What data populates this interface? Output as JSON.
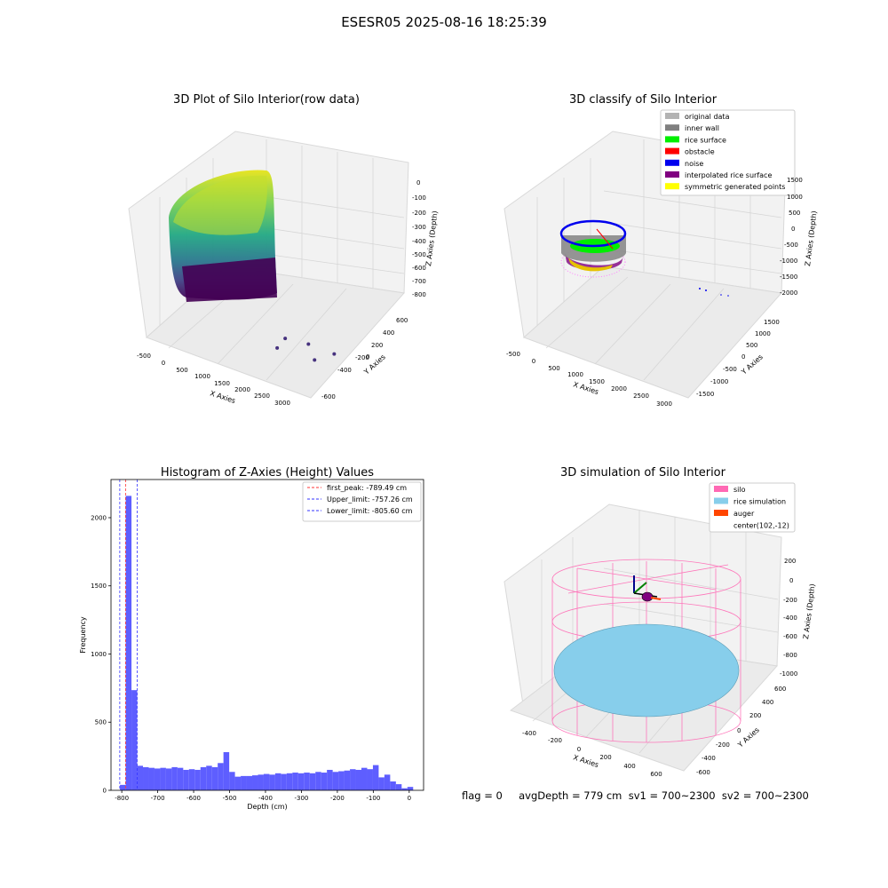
{
  "figure": {
    "suptitle": "ESESR05 2025-08-16 18:25:39",
    "status_line": "flag = 0     avgDepth = 779 cm  sv1 = 700~2300  sv2 = 700~2300"
  },
  "colors": {
    "hist_bar": "#5555ff",
    "pane": "#f2f2f2",
    "grid": "#d9d9d9",
    "first_peak_line": "#ff3333",
    "limit_line": "#3333ff",
    "original_data": "#b3b3b3",
    "inner_wall": "#808080",
    "rice_surface": "#00ee00",
    "obstacle": "#ff0000",
    "noise": "#0000ee",
    "interpolated_rice_surface": "#800080",
    "symmetric_generated_points": "#ffff00",
    "silo": "#ff69b4",
    "rice_simulation": "#87ceeb",
    "auger": "#ff4500"
  },
  "chart_data": [
    {
      "type": "scatter",
      "projection": "3d",
      "title": "3D Plot of Silo Interior(row data)",
      "xlabel": "X Axies",
      "ylabel": "Y Axies",
      "zlabel": "Z Axies (Depth)",
      "xticks": [
        "-500",
        "0",
        "500",
        "1000",
        "1500",
        "2000",
        "2500",
        "3000"
      ],
      "yticks": [
        "-600",
        "-400",
        "-200",
        "0",
        "200",
        "400",
        "600"
      ],
      "zticks": [
        "0",
        "-100",
        "-200",
        "-300",
        "-400",
        "-500",
        "-600",
        "-700",
        "-800"
      ],
      "xlim": [
        -600,
        3100
      ],
      "ylim": [
        -650,
        650
      ],
      "zlim": [
        -850,
        50
      ],
      "colormap": "viridis",
      "noise_points": [
        {
          "x": 2100,
          "y": -500,
          "z": -700
        },
        {
          "x": 2200,
          "y": -450,
          "z": -650
        },
        {
          "x": 2400,
          "y": -250,
          "z": -780
        },
        {
          "x": 2700,
          "y": -350,
          "z": -800
        },
        {
          "x": 2900,
          "y": -200,
          "z": -820
        }
      ]
    },
    {
      "type": "scatter",
      "projection": "3d",
      "title": "3D classify of Silo Interior",
      "xlabel": "X Axies",
      "ylabel": "Y Axies",
      "zlabel": "Z Axies (Depth)",
      "xticks": [
        "-500",
        "0",
        "500",
        "1000",
        "1500",
        "2000",
        "2500",
        "3000"
      ],
      "yticks": [
        "-1500",
        "-1000",
        "-500",
        "0",
        "500",
        "1000",
        "1500"
      ],
      "zticks": [
        "1500",
        "1000",
        "500",
        "0",
        "-500",
        "-1000",
        "-1500",
        "-2000"
      ],
      "legend": [
        {
          "label": "original data",
          "color": "#b3b3b3"
        },
        {
          "label": "inner wall",
          "color": "#808080"
        },
        {
          "label": "rice surface",
          "color": "#00ee00"
        },
        {
          "label": "obstacle",
          "color": "#ff0000"
        },
        {
          "label": "noise",
          "color": "#0000ee"
        },
        {
          "label": "interpolated rice surface",
          "color": "#800080"
        },
        {
          "label": "symmetric generated points",
          "color": "#ffff00"
        }
      ],
      "legend_loc": "upper right"
    },
    {
      "type": "bar",
      "title": "Histogram of Z-Axies (Height) Values",
      "xlabel": "Depth (cm)",
      "ylabel": "Frequency",
      "xlim": [
        -830,
        40
      ],
      "ylim": [
        0,
        2280
      ],
      "xticks": [
        -800,
        -700,
        -600,
        -500,
        -400,
        -300,
        -200,
        -100,
        0
      ],
      "yticks": [
        0,
        500,
        1000,
        1500,
        2000
      ],
      "bins": [
        {
          "x0": -805,
          "x1": -789,
          "count": 40
        },
        {
          "x0": -789,
          "x1": -773,
          "count": 2160
        },
        {
          "x0": -773,
          "x1": -757,
          "count": 735
        },
        {
          "x0": -757,
          "x1": -741,
          "count": 180
        },
        {
          "x0": -741,
          "x1": -725,
          "count": 170
        },
        {
          "x0": -725,
          "x1": -709,
          "count": 165
        },
        {
          "x0": -709,
          "x1": -693,
          "count": 160
        },
        {
          "x0": -693,
          "x1": -677,
          "count": 165
        },
        {
          "x0": -677,
          "x1": -661,
          "count": 160
        },
        {
          "x0": -661,
          "x1": -645,
          "count": 170
        },
        {
          "x0": -645,
          "x1": -629,
          "count": 165
        },
        {
          "x0": -629,
          "x1": -613,
          "count": 150
        },
        {
          "x0": -613,
          "x1": -597,
          "count": 155
        },
        {
          "x0": -597,
          "x1": -581,
          "count": 150
        },
        {
          "x0": -581,
          "x1": -565,
          "count": 170
        },
        {
          "x0": -565,
          "x1": -549,
          "count": 180
        },
        {
          "x0": -549,
          "x1": -533,
          "count": 170
        },
        {
          "x0": -533,
          "x1": -517,
          "count": 200
        },
        {
          "x0": -517,
          "x1": -501,
          "count": 280
        },
        {
          "x0": -501,
          "x1": -485,
          "count": 135
        },
        {
          "x0": -485,
          "x1": -469,
          "count": 100
        },
        {
          "x0": -469,
          "x1": -453,
          "count": 105
        },
        {
          "x0": -453,
          "x1": -437,
          "count": 105
        },
        {
          "x0": -437,
          "x1": -421,
          "count": 110
        },
        {
          "x0": -421,
          "x1": -405,
          "count": 115
        },
        {
          "x0": -405,
          "x1": -389,
          "count": 120
        },
        {
          "x0": -389,
          "x1": -373,
          "count": 115
        },
        {
          "x0": -373,
          "x1": -357,
          "count": 125
        },
        {
          "x0": -357,
          "x1": -341,
          "count": 120
        },
        {
          "x0": -341,
          "x1": -325,
          "count": 125
        },
        {
          "x0": -325,
          "x1": -309,
          "count": 130
        },
        {
          "x0": -309,
          "x1": -293,
          "count": 125
        },
        {
          "x0": -293,
          "x1": -277,
          "count": 130
        },
        {
          "x0": -277,
          "x1": -261,
          "count": 125
        },
        {
          "x0": -261,
          "x1": -245,
          "count": 135
        },
        {
          "x0": -245,
          "x1": -229,
          "count": 130
        },
        {
          "x0": -229,
          "x1": -213,
          "count": 150
        },
        {
          "x0": -213,
          "x1": -197,
          "count": 135
        },
        {
          "x0": -197,
          "x1": -181,
          "count": 140
        },
        {
          "x0": -181,
          "x1": -165,
          "count": 145
        },
        {
          "x0": -165,
          "x1": -149,
          "count": 155
        },
        {
          "x0": -149,
          "x1": -133,
          "count": 150
        },
        {
          "x0": -133,
          "x1": -117,
          "count": 165
        },
        {
          "x0": -117,
          "x1": -101,
          "count": 155
        },
        {
          "x0": -101,
          "x1": -85,
          "count": 185
        },
        {
          "x0": -85,
          "x1": -69,
          "count": 95
        },
        {
          "x0": -69,
          "x1": -53,
          "count": 115
        },
        {
          "x0": -53,
          "x1": -37,
          "count": 65
        },
        {
          "x0": -37,
          "x1": -21,
          "count": 45
        },
        {
          "x0": -21,
          "x1": -5,
          "count": 15
        },
        {
          "x0": -5,
          "x1": 11,
          "count": 25
        }
      ],
      "vlines": [
        {
          "x": -789.49,
          "label": "first_peak: -789.49 cm",
          "color": "#ff3333"
        },
        {
          "x": -757.26,
          "label": "Upper_limit: -757.26 cm",
          "color": "#3333ff"
        },
        {
          "x": -805.6,
          "label": "Lower_limit: -805.60 cm",
          "color": "#3333ff"
        }
      ],
      "legend_loc": "upper right"
    },
    {
      "type": "scatter",
      "projection": "3d",
      "title": "3D simulation of Silo Interior",
      "xlabel": "X Axies",
      "ylabel": "Y Axies",
      "zlabel": "Z Axies (Depth)",
      "xticks": [
        "-400",
        "-200",
        "0",
        "200",
        "400",
        "600"
      ],
      "yticks": [
        "-600",
        "-400",
        "-200",
        "0",
        "200",
        "400",
        "600"
      ],
      "zticks": [
        "200",
        "0",
        "-200",
        "-400",
        "-600",
        "-800",
        "-1000"
      ],
      "legend": [
        {
          "label": "silo",
          "color": "#ff69b4"
        },
        {
          "label": "rice simulation",
          "color": "#87ceeb"
        },
        {
          "label": "auger",
          "color": "#ff4500"
        },
        {
          "label": "center(102,-12)",
          "color": ""
        }
      ],
      "legend_loc": "upper right"
    }
  ]
}
